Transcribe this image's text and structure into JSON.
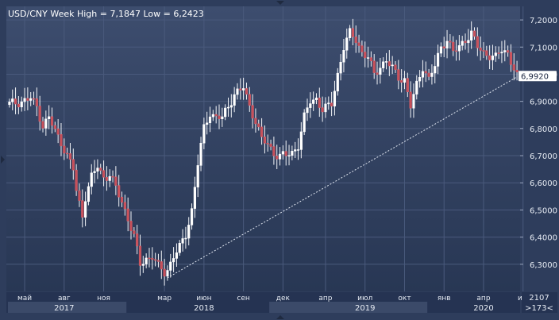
{
  "chart_data": {
    "type": "candlestick",
    "title": "USD/CNY Week High = 7,1847 Low = 6,2423",
    "ylim": [
      6.2,
      7.25
    ],
    "yticks": [
      {
        "v": 7.2,
        "label": "7,2000"
      },
      {
        "v": 7.1,
        "label": "7,1000"
      },
      {
        "v": 7.0,
        "label": "7,0000"
      },
      {
        "v": 6.9,
        "label": "6,9000"
      },
      {
        "v": 6.8,
        "label": "6,8000"
      },
      {
        "v": 6.7,
        "label": "6,7000"
      },
      {
        "v": 6.6,
        "label": "6,6000"
      },
      {
        "v": 6.5,
        "label": "6,5000"
      },
      {
        "v": 6.4,
        "label": "6,4000"
      },
      {
        "v": 6.3,
        "label": "6,3000"
      }
    ],
    "month_labels": [
      {
        "w": 5,
        "label": "май"
      },
      {
        "w": 18,
        "label": "авг"
      },
      {
        "w": 31,
        "label": "ноя"
      },
      {
        "w": 51,
        "label": "мар"
      },
      {
        "w": 64,
        "label": "июн"
      },
      {
        "w": 77,
        "label": "сен"
      },
      {
        "w": 90,
        "label": "дек"
      },
      {
        "w": 104,
        "label": "апр"
      },
      {
        "w": 117,
        "label": "июл"
      },
      {
        "w": 130,
        "label": "окт"
      },
      {
        "w": 143,
        "label": "янв"
      },
      {
        "w": 156,
        "label": "апр"
      },
      {
        "w": 169,
        "label": "ию"
      }
    ],
    "year_labels": [
      {
        "w": 18,
        "label": "2017"
      },
      {
        "w": 64,
        "label": "2018"
      },
      {
        "w": 117,
        "label": "2019"
      },
      {
        "w": 156,
        "label": "2020"
      }
    ],
    "year_bands": [
      [
        0,
        39
      ],
      [
        86,
        138
      ]
    ],
    "last_price": {
      "v": 6.992,
      "label": "6,9920"
    },
    "trendline": {
      "from": {
        "w": 52,
        "v": 6.25
      },
      "to": {
        "w": 167,
        "v": 6.99
      }
    },
    "corner": {
      "top": "2107",
      "bottom": ">173<"
    },
    "weeks": 168,
    "anchors": [
      [
        0,
        6.89
      ],
      [
        4,
        6.9
      ],
      [
        7,
        6.91
      ],
      [
        9,
        6.88
      ],
      [
        11,
        6.81
      ],
      [
        13,
        6.84
      ],
      [
        15,
        6.79
      ],
      [
        17,
        6.75
      ],
      [
        19,
        6.7
      ],
      [
        21,
        6.65
      ],
      [
        22,
        6.57
      ],
      [
        24,
        6.48
      ],
      [
        25,
        6.55
      ],
      [
        27,
        6.62
      ],
      [
        29,
        6.66
      ],
      [
        31,
        6.62
      ],
      [
        33,
        6.63
      ],
      [
        35,
        6.58
      ],
      [
        37,
        6.53
      ],
      [
        39,
        6.47
      ],
      [
        41,
        6.4
      ],
      [
        43,
        6.3
      ],
      [
        45,
        6.32
      ],
      [
        47,
        6.33
      ],
      [
        49,
        6.29
      ],
      [
        51,
        6.27
      ],
      [
        52,
        6.28
      ],
      [
        54,
        6.33
      ],
      [
        56,
        6.36
      ],
      [
        58,
        6.41
      ],
      [
        60,
        6.5
      ],
      [
        62,
        6.67
      ],
      [
        64,
        6.8
      ],
      [
        66,
        6.86
      ],
      [
        68,
        6.84
      ],
      [
        70,
        6.84
      ],
      [
        72,
        6.88
      ],
      [
        74,
        6.93
      ],
      [
        76,
        6.94
      ],
      [
        77,
        6.95
      ],
      [
        79,
        6.88
      ],
      [
        81,
        6.83
      ],
      [
        83,
        6.76
      ],
      [
        85,
        6.74
      ],
      [
        87,
        6.71
      ],
      [
        89,
        6.7
      ],
      [
        91,
        6.7
      ],
      [
        93,
        6.71
      ],
      [
        95,
        6.74
      ],
      [
        97,
        6.84
      ],
      [
        99,
        6.9
      ],
      [
        101,
        6.91
      ],
      [
        103,
        6.87
      ],
      [
        105,
        6.88
      ],
      [
        106,
        6.89
      ],
      [
        108,
        7.0
      ],
      [
        110,
        7.1
      ],
      [
        112,
        7.15
      ],
      [
        114,
        7.13
      ],
      [
        116,
        7.08
      ],
      [
        118,
        7.06
      ],
      [
        120,
        7.0
      ],
      [
        122,
        7.03
      ],
      [
        124,
        7.05
      ],
      [
        126,
        7.02
      ],
      [
        128,
        6.99
      ],
      [
        130,
        6.98
      ],
      [
        132,
        6.88
      ],
      [
        134,
        6.96
      ],
      [
        136,
        7.03
      ],
      [
        138,
        6.98
      ],
      [
        140,
        7.03
      ],
      [
        142,
        7.1
      ],
      [
        144,
        7.13
      ],
      [
        146,
        7.08
      ],
      [
        148,
        7.1
      ],
      [
        150,
        7.13
      ],
      [
        152,
        7.15
      ],
      [
        154,
        7.1
      ],
      [
        156,
        7.08
      ],
      [
        158,
        7.07
      ],
      [
        160,
        7.06
      ],
      [
        162,
        7.09
      ],
      [
        164,
        7.08
      ],
      [
        166,
        7.02
      ],
      [
        167,
        6.99
      ]
    ]
  }
}
